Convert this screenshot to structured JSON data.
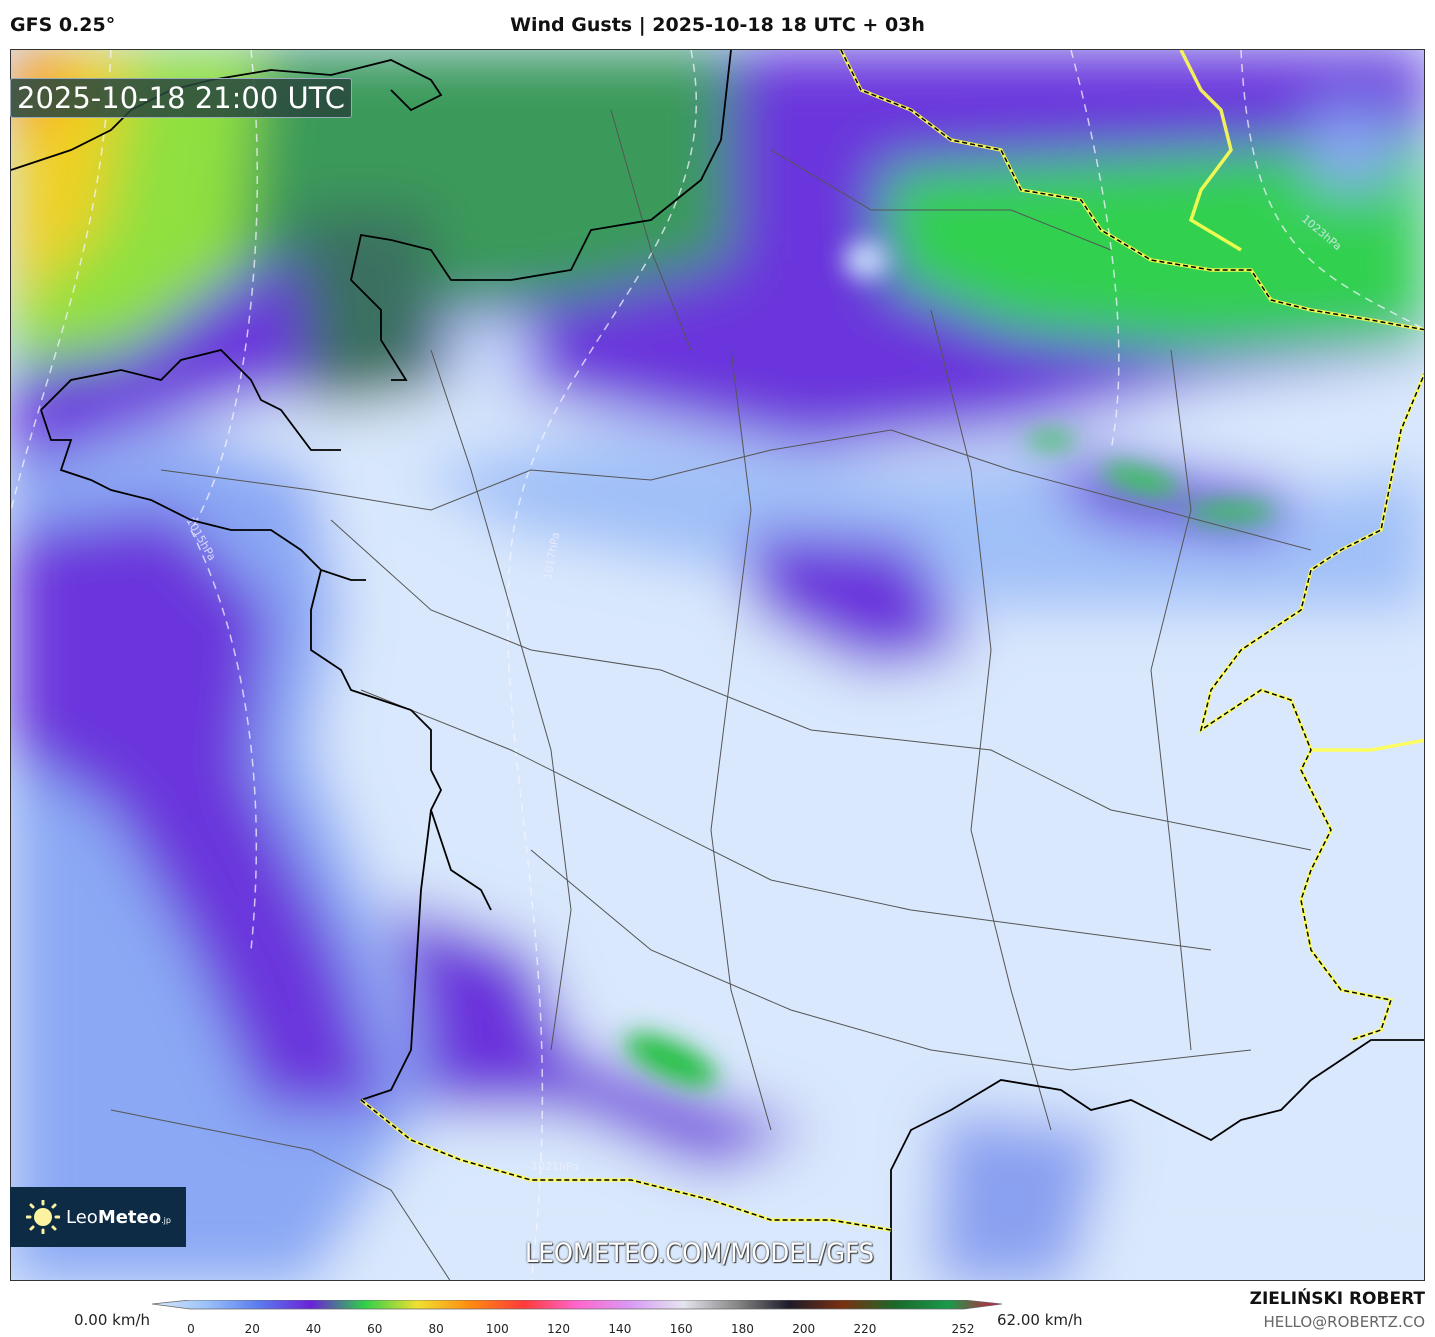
{
  "header": {
    "model": "GFS 0.25°",
    "title": "Wind Gusts | 2025-10-18 18 UTC + 03h"
  },
  "map": {
    "timestamp": "2025-10-18 21:00 UTC",
    "watermark": "LEOMETEO.COM/MODEL/GFS",
    "logo": {
      "name": "LeoMeteo",
      "prefix": "Leo",
      "bold": "Meteo",
      "suffix": ".jp",
      "icon": "sun-icon"
    },
    "isobar_labels": [
      "1015hPa",
      "1017hPa",
      "1021hPa",
      "1023hPa"
    ]
  },
  "colorbar": {
    "min_label": "0.00 km/h",
    "max_label": "62.00 km/h",
    "ticks": [
      "0",
      "20",
      "40",
      "60",
      "80",
      "100",
      "120",
      "140",
      "160",
      "180",
      "200",
      "220",
      "252"
    ],
    "colors": [
      "#dbe9fd",
      "#9cc3f8",
      "#5b7cf0",
      "#6a22d8",
      "#2fd04a",
      "#f0e030",
      "#ff8a10",
      "#ff3a3a",
      "#ff66cc",
      "#d99af5",
      "#e5e5ee",
      "#888",
      "#1c1c2a",
      "#7a3010",
      "#1a6a2a",
      "#1a9a4a",
      "#dd1040"
    ]
  },
  "credit": {
    "name": "ZIELIŃSKI ROBERT",
    "email": "HELLO@ROBERTZ.CO"
  }
}
